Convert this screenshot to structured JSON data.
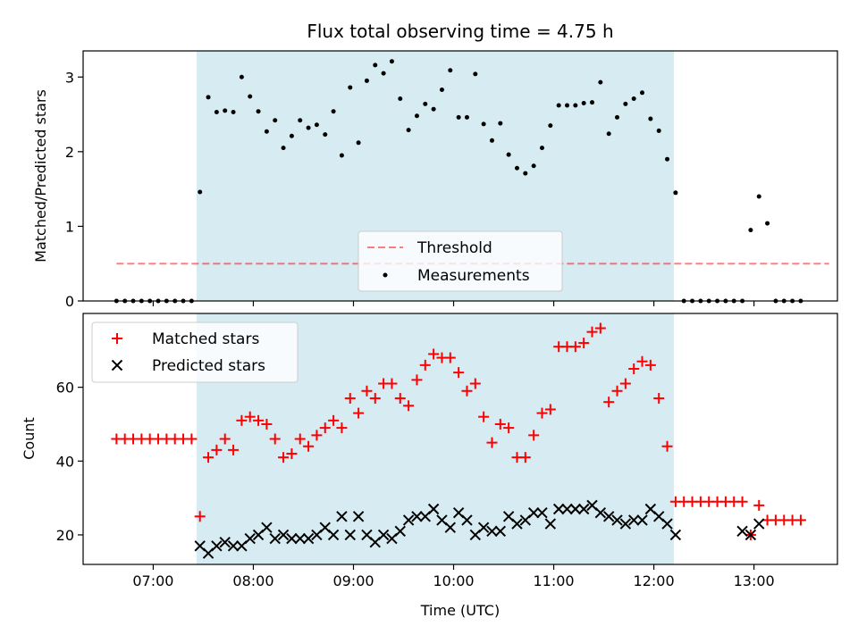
{
  "title": "Flux total observing time = 4.75 h",
  "colors": {
    "shade": "#add8e6",
    "threshold": "#ff0000",
    "matched": "#ff0000",
    "predicted": "#000000",
    "measurement": "#000000"
  },
  "chart_data": [
    {
      "type": "scatter",
      "ylabel": "Matched/Predicted stars",
      "ylim": [
        0,
        3.35
      ],
      "yticks": [
        0,
        1,
        2,
        3
      ],
      "xlim": [
        "06:18",
        "13:50"
      ],
      "xticks": [
        "07:00",
        "08:00",
        "09:00",
        "10:00",
        "11:00",
        "12:00",
        "13:00"
      ],
      "shaded_span": [
        "07:26",
        "12:12"
      ],
      "legend_position": "lower center",
      "legend": [
        "Threshold",
        "Measurements"
      ],
      "threshold": {
        "name": "Threshold",
        "y": 0.5,
        "x_range": [
          "06:38",
          "13:45"
        ]
      },
      "measurements": {
        "name": "Measurements",
        "x": [
          "06:38",
          "06:43",
          "06:48",
          "06:53",
          "06:58",
          "07:03",
          "07:08",
          "07:13",
          "07:18",
          "07:23",
          "07:28",
          "07:33",
          "07:38",
          "07:43",
          "07:48",
          "07:53",
          "07:58",
          "08:03",
          "08:08",
          "08:13",
          "08:18",
          "08:23",
          "08:28",
          "08:33",
          "08:38",
          "08:43",
          "08:48",
          "08:53",
          "08:58",
          "09:03",
          "09:08",
          "09:13",
          "09:18",
          "09:23",
          "09:28",
          "09:33",
          "09:38",
          "09:43",
          "09:48",
          "09:53",
          "09:58",
          "10:03",
          "10:08",
          "10:13",
          "10:18",
          "10:23",
          "10:28",
          "10:33",
          "10:38",
          "10:43",
          "10:48",
          "10:53",
          "10:58",
          "11:03",
          "11:08",
          "11:13",
          "11:18",
          "11:23",
          "11:28",
          "11:33",
          "11:38",
          "11:43",
          "11:48",
          "11:53",
          "11:58",
          "12:03",
          "12:08",
          "12:13",
          "12:18",
          "12:23",
          "12:28",
          "12:33",
          "12:38",
          "12:43",
          "12:48",
          "12:53",
          "12:58",
          "13:03",
          "13:08",
          "13:13",
          "13:18",
          "13:23",
          "13:28"
        ],
        "y": [
          0,
          0,
          0,
          0,
          0,
          0,
          0,
          0,
          0,
          0,
          1.46,
          2.73,
          2.53,
          2.55,
          2.53,
          3.0,
          2.74,
          2.54,
          2.27,
          2.42,
          2.05,
          2.21,
          2.42,
          2.32,
          2.36,
          2.23,
          2.54,
          1.95,
          2.86,
          2.12,
          2.95,
          3.16,
          3.05,
          3.21,
          2.71,
          2.29,
          2.48,
          2.64,
          2.57,
          2.83,
          3.09,
          2.46,
          2.46,
          3.04,
          2.37,
          2.15,
          2.38,
          1.96,
          1.78,
          1.71,
          1.81,
          2.05,
          2.35,
          2.62,
          2.62,
          2.62,
          2.65,
          2.66,
          2.93,
          2.24,
          2.46,
          2.64,
          2.71,
          2.79,
          2.44,
          2.28,
          1.9,
          1.45,
          0,
          0,
          0,
          0,
          0,
          0,
          0,
          0,
          0.95,
          1.4,
          1.04,
          0,
          0,
          0,
          0
        ]
      }
    },
    {
      "type": "scatter",
      "xlabel": "Time (UTC)",
      "ylabel": "Count",
      "ylim": [
        12,
        80
      ],
      "yticks": [
        20,
        40,
        60
      ],
      "xlim": [
        "06:18",
        "13:50"
      ],
      "xticks": [
        "07:00",
        "08:00",
        "09:00",
        "10:00",
        "11:00",
        "12:00",
        "13:00"
      ],
      "shaded_span": [
        "07:26",
        "12:12"
      ],
      "legend_position": "upper left",
      "legend": [
        "Matched stars",
        "Predicted stars"
      ],
      "series": [
        {
          "name": "Matched stars",
          "marker": "+",
          "x": [
            "06:38",
            "06:43",
            "06:48",
            "06:53",
            "06:58",
            "07:03",
            "07:08",
            "07:13",
            "07:18",
            "07:23",
            "07:28",
            "07:33",
            "07:38",
            "07:43",
            "07:48",
            "07:53",
            "07:58",
            "08:03",
            "08:08",
            "08:13",
            "08:18",
            "08:23",
            "08:28",
            "08:33",
            "08:38",
            "08:43",
            "08:48",
            "08:53",
            "08:58",
            "09:03",
            "09:08",
            "09:13",
            "09:18",
            "09:23",
            "09:28",
            "09:33",
            "09:38",
            "09:43",
            "09:48",
            "09:53",
            "09:58",
            "10:03",
            "10:08",
            "10:13",
            "10:18",
            "10:23",
            "10:28",
            "10:33",
            "10:38",
            "10:43",
            "10:48",
            "10:53",
            "10:58",
            "11:03",
            "11:08",
            "11:13",
            "11:18",
            "11:23",
            "11:28",
            "11:33",
            "11:38",
            "11:43",
            "11:48",
            "11:53",
            "11:58",
            "12:03",
            "12:08",
            "12:13",
            "12:18",
            "12:23",
            "12:28",
            "12:33",
            "12:38",
            "12:43",
            "12:48",
            "12:53",
            "12:58",
            "13:03",
            "13:08",
            "13:13",
            "13:18",
            "13:23",
            "13:28"
          ],
          "y": [
            46,
            46,
            46,
            46,
            46,
            46,
            46,
            46,
            46,
            46,
            25,
            41,
            43,
            46,
            43,
            51,
            52,
            51,
            50,
            46,
            41,
            42,
            46,
            44,
            47,
            49,
            51,
            49,
            57,
            53,
            59,
            57,
            61,
            61,
            57,
            55,
            62,
            66,
            69,
            68,
            68,
            64,
            59,
            61,
            52,
            45,
            50,
            49,
            41,
            41,
            47,
            53,
            54,
            71,
            71,
            71,
            72,
            75,
            76,
            56,
            59,
            61,
            65,
            67,
            66,
            57,
            44,
            29,
            29,
            29,
            29,
            29,
            29,
            29,
            29,
            29,
            20,
            28,
            24,
            24,
            24,
            24,
            24
          ]
        },
        {
          "name": "Predicted stars",
          "marker": "x",
          "x": [
            "07:28",
            "07:33",
            "07:38",
            "07:43",
            "07:48",
            "07:53",
            "07:58",
            "08:03",
            "08:08",
            "08:13",
            "08:18",
            "08:23",
            "08:28",
            "08:33",
            "08:38",
            "08:43",
            "08:48",
            "08:53",
            "08:58",
            "09:03",
            "09:08",
            "09:13",
            "09:18",
            "09:23",
            "09:28",
            "09:33",
            "09:38",
            "09:43",
            "09:48",
            "09:53",
            "09:58",
            "10:03",
            "10:08",
            "10:13",
            "10:18",
            "10:23",
            "10:28",
            "10:33",
            "10:38",
            "10:43",
            "10:48",
            "10:53",
            "10:58",
            "11:03",
            "11:08",
            "11:13",
            "11:18",
            "11:23",
            "11:28",
            "11:33",
            "11:38",
            "11:43",
            "11:48",
            "11:53",
            "11:58",
            "12:03",
            "12:08",
            "12:13",
            "12:53",
            "12:58",
            "13:03"
          ],
          "y": [
            17,
            15,
            17,
            18,
            17,
            17,
            19,
            20,
            22,
            19,
            20,
            19,
            19,
            19,
            20,
            22,
            20,
            25,
            20,
            25,
            20,
            18,
            20,
            19,
            21,
            24,
            25,
            25,
            27,
            24,
            22,
            26,
            24,
            20,
            22,
            21,
            21,
            25,
            23,
            24,
            26,
            26,
            23,
            27,
            27,
            27,
            27,
            28,
            26,
            25,
            24,
            23,
            24,
            24,
            27,
            25,
            23,
            20,
            21,
            20,
            23
          ]
        }
      ]
    }
  ]
}
